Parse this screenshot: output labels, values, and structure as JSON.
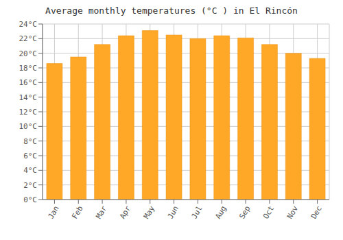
{
  "chart_data": {
    "type": "bar",
    "title": "Average monthly temperatures (°C ) in El Rincón",
    "categories": [
      "Jan",
      "Feb",
      "Mar",
      "Apr",
      "May",
      "Jun",
      "Jul",
      "Aug",
      "Sep",
      "Oct",
      "Nov",
      "Dec"
    ],
    "values": [
      18.6,
      19.5,
      21.2,
      22.4,
      23.1,
      22.5,
      22.0,
      22.4,
      22.1,
      21.2,
      20.0,
      19.3
    ],
    "color": "#FFA726",
    "ylim": [
      0,
      24
    ],
    "yticks": [
      {
        "value": 0,
        "label": "0°C"
      },
      {
        "value": 2,
        "label": "2°C"
      },
      {
        "value": 4,
        "label": "4°C"
      },
      {
        "value": 6,
        "label": "6°C"
      },
      {
        "value": 8,
        "label": "8°C"
      },
      {
        "value": 10,
        "label": "10°C"
      },
      {
        "value": 12,
        "label": "12°C"
      },
      {
        "value": 14,
        "label": "14°C"
      },
      {
        "value": 16,
        "label": "16°C"
      },
      {
        "value": 18,
        "label": "18°C"
      },
      {
        "value": 20,
        "label": "20°C"
      },
      {
        "value": 22,
        "label": "22°C"
      },
      {
        "value": 24,
        "label": "24°C"
      }
    ],
    "grid": true
  }
}
